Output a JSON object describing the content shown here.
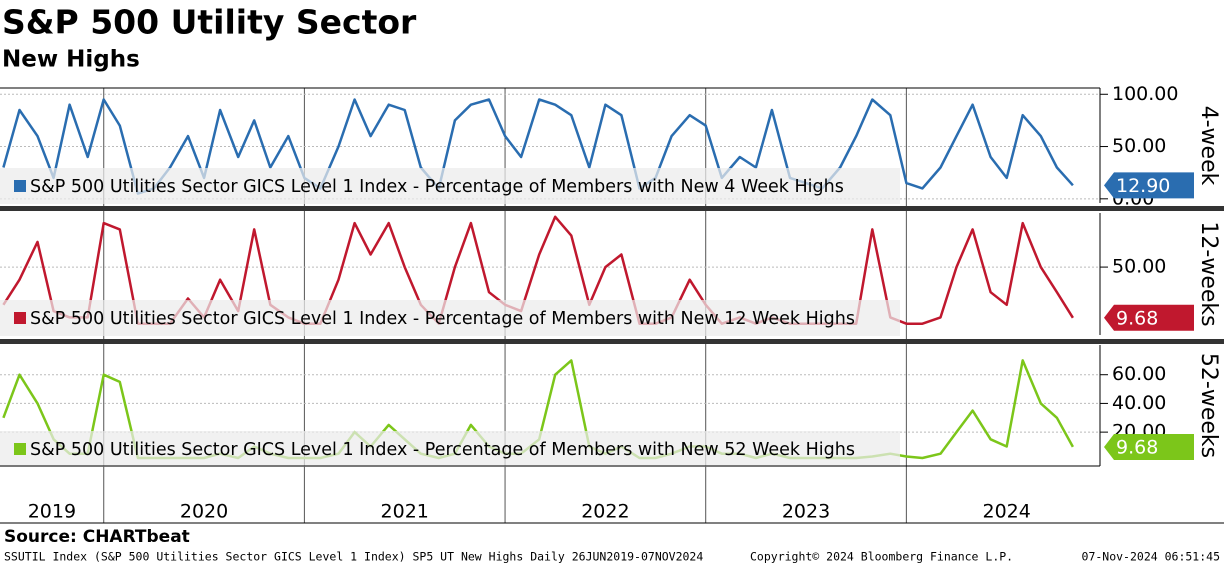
{
  "chart_data": {
    "type": "line",
    "title": "S&P 500 Utility Sector",
    "subtitle": "New Highs",
    "source": "Source: CHARTbeat",
    "footer_left": "SSUTIL Index (S&P 500 Utilities Sector GICS Level 1 Index) SP5 UT New Highs  Daily 26JUN2019-07NOV2024",
    "footer_center": "Copyright© 2024 Bloomberg Finance L.P.",
    "footer_right": "07-Nov-2024 06:51:45",
    "xlim": [
      2019.483,
      2024.965
    ],
    "xticks": [
      2020,
      2021,
      2022,
      2023,
      2024
    ],
    "year_labels": [
      "2019",
      "2020",
      "2021",
      "2022",
      "2023",
      "2024"
    ],
    "grid": true,
    "x": [
      2019.5,
      2019.58,
      2019.67,
      2019.75,
      2019.83,
      2019.92,
      2020.0,
      2020.08,
      2020.17,
      2020.25,
      2020.33,
      2020.42,
      2020.5,
      2020.58,
      2020.67,
      2020.75,
      2020.83,
      2020.92,
      2021.0,
      2021.08,
      2021.17,
      2021.25,
      2021.33,
      2021.42,
      2021.5,
      2021.58,
      2021.67,
      2021.75,
      2021.83,
      2021.92,
      2022.0,
      2022.08,
      2022.17,
      2022.25,
      2022.33,
      2022.42,
      2022.5,
      2022.58,
      2022.67,
      2022.75,
      2022.83,
      2022.92,
      2023.0,
      2023.08,
      2023.17,
      2023.25,
      2023.33,
      2023.42,
      2023.5,
      2023.58,
      2023.67,
      2023.75,
      2023.83,
      2023.92,
      2024.0,
      2024.08,
      2024.17,
      2024.25,
      2024.33,
      2024.42,
      2024.5,
      2024.58,
      2024.67,
      2024.75,
      2024.83
    ],
    "panels": [
      {
        "name": "S&P 500 Utilities Sector GICS Level 1 Index - Percentage of Members with New 4 Week Highs",
        "side_label": "4-week",
        "color": "#2a6db0",
        "ylim": [
          -4,
          106
        ],
        "yticks": [
          {
            "value": 0,
            "label": "0.00"
          },
          {
            "value": 50,
            "label": "50.00"
          },
          {
            "value": 100,
            "label": "100.00"
          }
        ],
        "last_value": 12.9,
        "last_value_label": "12.90",
        "values": [
          30,
          85,
          60,
          20,
          90,
          40,
          95,
          70,
          5,
          10,
          30,
          60,
          20,
          85,
          40,
          75,
          30,
          60,
          20,
          10,
          50,
          95,
          60,
          90,
          85,
          30,
          10,
          75,
          90,
          95,
          60,
          40,
          95,
          90,
          80,
          30,
          90,
          80,
          10,
          20,
          60,
          80,
          70,
          20,
          40,
          30,
          85,
          20,
          15,
          10,
          30,
          60,
          95,
          80,
          15,
          10,
          30,
          60,
          90,
          40,
          20,
          80,
          60,
          30,
          12.9
        ]
      },
      {
        "name": "S&P 500 Utilities Sector GICS Level 1 Index - Percentage of Members with New 12 Week Highs",
        "side_label": "12-weeks",
        "color": "#c0182e",
        "ylim": [
          -4,
          93
        ],
        "yticks": [
          {
            "value": 50,
            "label": "50.00"
          }
        ],
        "last_value": 9.68,
        "last_value_label": "9.68",
        "values": [
          20,
          40,
          70,
          15,
          10,
          10,
          85,
          80,
          5,
          5,
          5,
          25,
          10,
          40,
          15,
          80,
          20,
          10,
          5,
          5,
          40,
          85,
          60,
          85,
          50,
          20,
          5,
          50,
          85,
          30,
          20,
          15,
          60,
          90,
          75,
          20,
          50,
          60,
          5,
          5,
          10,
          40,
          20,
          5,
          10,
          5,
          10,
          5,
          5,
          5,
          5,
          5,
          80,
          10,
          5,
          5,
          10,
          50,
          80,
          30,
          20,
          85,
          50,
          30,
          9.68
        ]
      },
      {
        "name": "S&P 500 Utilities Sector GICS Level 1 Index - Percentage of Members with New 52 Week Highs",
        "side_label": "52-weeks",
        "color": "#7cc61a",
        "ylim": [
          -3.6,
          80.7
        ],
        "yticks": [
          {
            "value": 20,
            "label": "20.00"
          },
          {
            "value": 40,
            "label": "40.00"
          },
          {
            "value": 60,
            "label": "60.00"
          }
        ],
        "last_value": 9.68,
        "last_value_label": "9.68",
        "values": [
          30,
          60,
          40,
          15,
          5,
          5,
          60,
          55,
          2,
          2,
          2,
          2,
          2,
          5,
          2,
          10,
          5,
          2,
          2,
          2,
          5,
          20,
          10,
          25,
          15,
          5,
          2,
          5,
          25,
          10,
          5,
          5,
          15,
          60,
          70,
          10,
          5,
          10,
          2,
          2,
          5,
          10,
          10,
          5,
          5,
          2,
          5,
          2,
          2,
          2,
          2,
          2,
          3,
          5,
          3,
          2,
          5,
          20,
          35,
          15,
          10,
          70,
          40,
          30,
          9.68
        ]
      }
    ]
  }
}
